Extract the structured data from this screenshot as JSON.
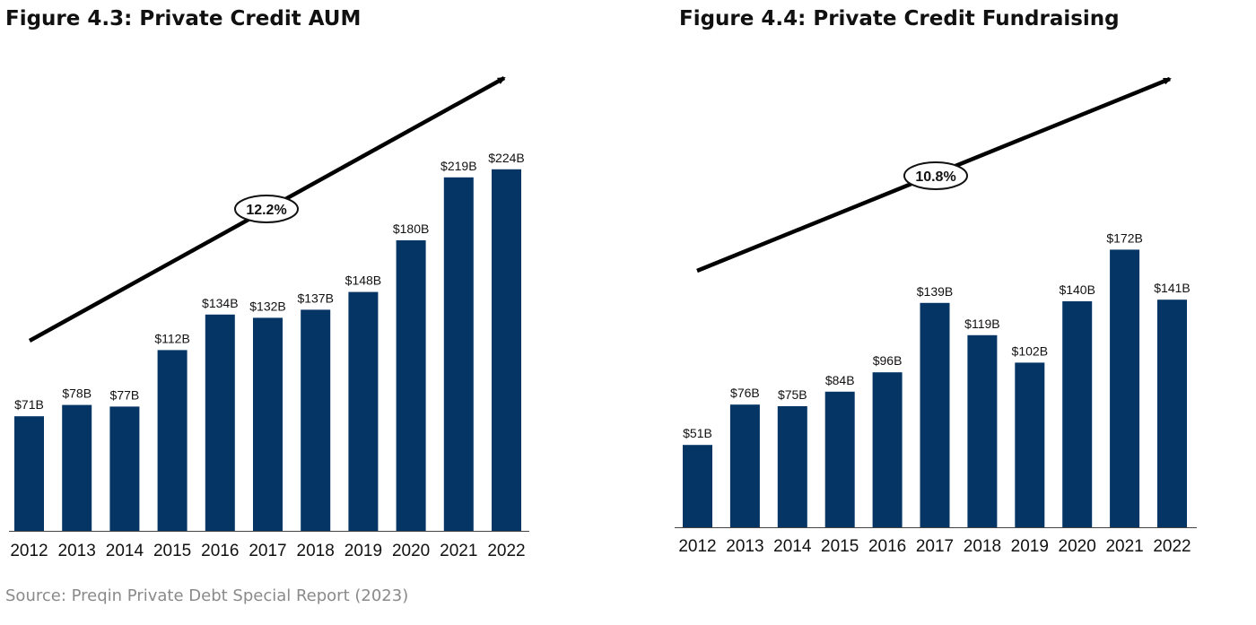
{
  "colors": {
    "bar": "#053565",
    "arrow": "#000000",
    "label": "#111111",
    "source": "#8a8a8a"
  },
  "source": "Source: Preqin Private Debt Special Report (2023)",
  "chart_data": [
    {
      "type": "bar",
      "title": "Figure 4.3: Private Credit AUM",
      "categories": [
        "2012",
        "2013",
        "2014",
        "2015",
        "2016",
        "2017",
        "2018",
        "2019",
        "2020",
        "2021",
        "2022"
      ],
      "values": [
        71,
        78,
        77,
        112,
        134,
        132,
        137,
        148,
        180,
        219,
        224
      ],
      "data_labels": [
        "$71B",
        "$78B",
        "$77B",
        "$112B",
        "$134B",
        "$132B",
        "$137B",
        "$148B",
        "$180B",
        "$219B",
        "$224B"
      ],
      "unit": "$B",
      "ylim": [
        0,
        260
      ],
      "grid": false,
      "trend_label": "12.2%"
    },
    {
      "type": "bar",
      "title": "Figure 4.4: Private Credit Fundraising",
      "categories": [
        "2012",
        "2013",
        "2014",
        "2015",
        "2016",
        "2017",
        "2018",
        "2019",
        "2020",
        "2021",
        "2022"
      ],
      "values": [
        51,
        76,
        75,
        84,
        96,
        139,
        119,
        102,
        140,
        172,
        141
      ],
      "data_labels": [
        "$51B",
        "$76B",
        "$75B",
        "$84B",
        "$96B",
        "$139B",
        "$119B",
        "$102B",
        "$140B",
        "$172B",
        "$141B"
      ],
      "unit": "$B",
      "ylim": [
        0,
        210
      ],
      "grid": false,
      "trend_label": "10.8%"
    }
  ]
}
